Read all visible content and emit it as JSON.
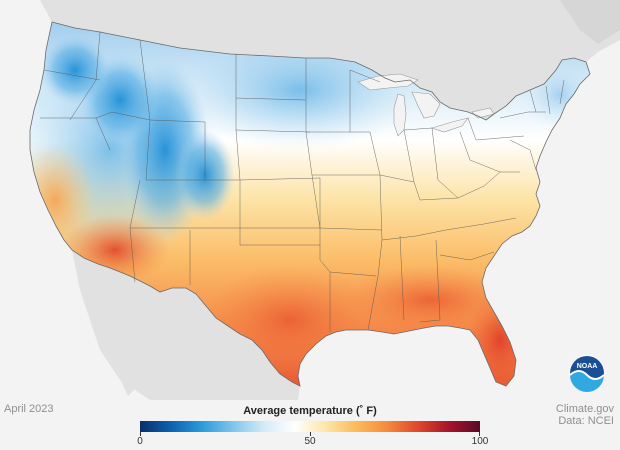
{
  "date_label": "April 2023",
  "source": {
    "line1": "Climate.gov",
    "line2": "Data: NCEI"
  },
  "legend": {
    "title": "Average temperature (˚ F)",
    "min": 0,
    "max": 100,
    "ticks": [
      "0",
      "50",
      "100"
    ],
    "colors": [
      "#08306b",
      "#0b62b0",
      "#2a9bdb",
      "#7fc4ec",
      "#d2eaf7",
      "#ffffff",
      "#fde6a8",
      "#fdba5a",
      "#f58a3b",
      "#e0462a",
      "#a5142b",
      "#5a0a26"
    ]
  },
  "logo": {
    "text": "NOAA"
  },
  "colors": {
    "background": "#f3f3f3",
    "neighbor_land": "#e1e1e1",
    "water": "#f3f3f3",
    "state_border": "#555555"
  }
}
